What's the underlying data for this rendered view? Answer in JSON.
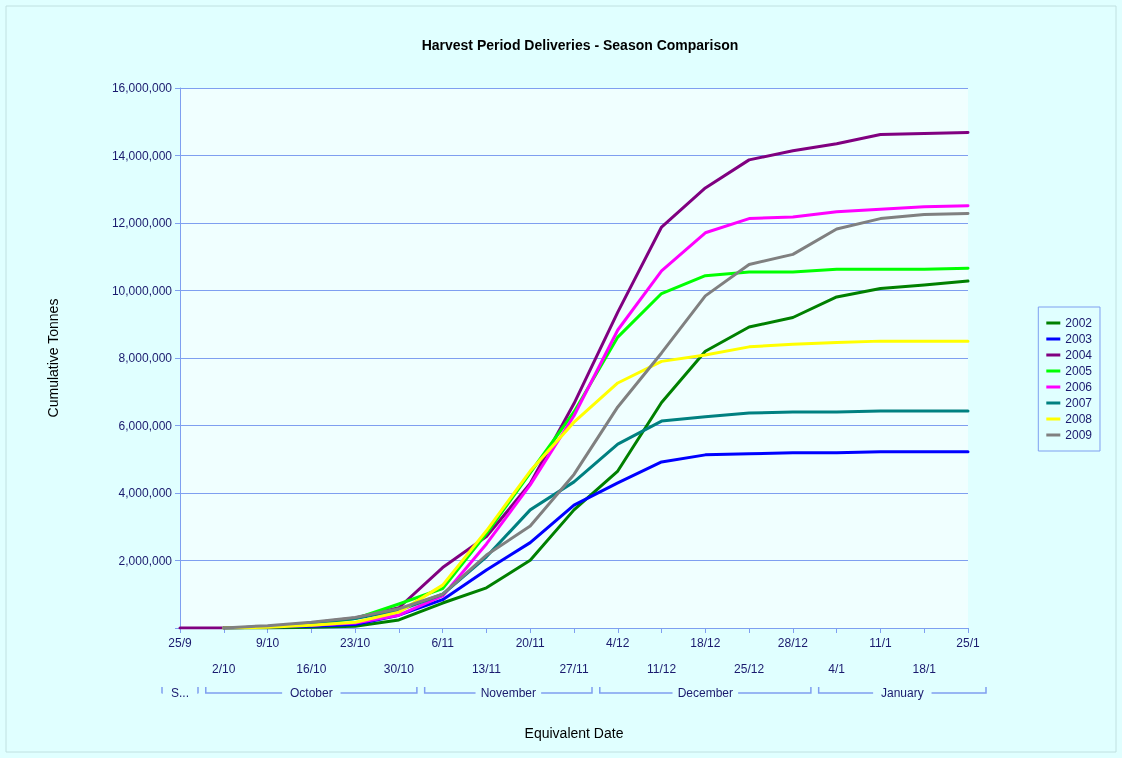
{
  "chart_data": {
    "type": "line",
    "title": "Harvest Period Deliveries - Season Comparison",
    "xlabel": "Equivalent Date",
    "ylabel": "Cumulative Tonnes",
    "categories": [
      "25/9",
      "2/10",
      "9/10",
      "16/10",
      "23/10",
      "30/10",
      "6/11",
      "13/11",
      "20/11",
      "27/11",
      "4/12",
      "11/12",
      "18/12",
      "25/12",
      "28/12",
      "4/1",
      "11/1",
      "18/1",
      "25/1"
    ],
    "series": [
      {
        "name": "2002",
        "color": "#008000",
        "values": [
          null,
          0,
          0,
          20000,
          50000,
          240000,
          740000,
          1190000,
          2010000,
          3500000,
          4650000,
          6680000,
          8200000,
          8920000,
          9200000,
          9810000,
          10060000,
          10160000,
          10280000
        ]
      },
      {
        "name": "2003",
        "color": "#0000ff",
        "values": [
          null,
          0,
          30000,
          50000,
          100000,
          380000,
          840000,
          1720000,
          2530000,
          3640000,
          4300000,
          4920000,
          5130000,
          5160000,
          5190000,
          5190000,
          5220000,
          5220000,
          5220000
        ]
      },
      {
        "name": "2004",
        "color": "#800080",
        "values": [
          0,
          0,
          30000,
          150000,
          300000,
          600000,
          1790000,
          2710000,
          4280000,
          6650000,
          9360000,
          11880000,
          13040000,
          13870000,
          14140000,
          14350000,
          14620000,
          14650000,
          14680000
        ]
      },
      {
        "name": "2005",
        "color": "#00ff00",
        "values": [
          null,
          null,
          null,
          100000,
          280000,
          710000,
          1170000,
          2800000,
          4600000,
          6400000,
          8620000,
          9910000,
          10440000,
          10550000,
          10550000,
          10630000,
          10630000,
          10630000,
          10660000
        ]
      },
      {
        "name": "2006",
        "color": "#ff00ff",
        "values": [
          null,
          null,
          null,
          80000,
          150000,
          380000,
          950000,
          2490000,
          4240000,
          6290000,
          8830000,
          10580000,
          11710000,
          12130000,
          12180000,
          12330000,
          12410000,
          12480000,
          12510000
        ]
      },
      {
        "name": "2007",
        "color": "#008080",
        "values": [
          null,
          0,
          30000,
          150000,
          280000,
          520000,
          1000000,
          2110000,
          3500000,
          4330000,
          5450000,
          6130000,
          6260000,
          6370000,
          6400000,
          6400000,
          6430000,
          6430000,
          6430000
        ]
      },
      {
        "name": "2008",
        "color": "#ffff00",
        "values": [
          null,
          0,
          20000,
          80000,
          170000,
          470000,
          1270000,
          2880000,
          4650000,
          6100000,
          7260000,
          7900000,
          8090000,
          8330000,
          8410000,
          8460000,
          8500000,
          8500000,
          8500000
        ]
      },
      {
        "name": "2009",
        "color": "#808080",
        "values": [
          null,
          0,
          70000,
          170000,
          310000,
          570000,
          1000000,
          2160000,
          3020000,
          4550000,
          6550000,
          8150000,
          9840000,
          10770000,
          11070000,
          11820000,
          12130000,
          12250000,
          12280000
        ]
      }
    ],
    "ylim": [
      0,
      16000000
    ],
    "yticks": [
      {
        "value": 0,
        "label": null
      },
      {
        "value": 2000000,
        "label": "2,000,000"
      },
      {
        "value": 4000000,
        "label": "4,000,000"
      },
      {
        "value": 6000000,
        "label": "6,000,000"
      },
      {
        "value": 8000000,
        "label": "8,000,000"
      },
      {
        "value": 10000000,
        "label": "10,000,000"
      },
      {
        "value": 12000000,
        "label": "12,000,000"
      },
      {
        "value": 14000000,
        "label": "14,000,000"
      },
      {
        "value": 16000000,
        "label": "16,000,000"
      }
    ],
    "annotations": [
      "S...",
      "October",
      "November",
      "December",
      "January"
    ],
    "grid": "y",
    "legend": "right",
    "marker": "none",
    "line_style": "solid"
  }
}
